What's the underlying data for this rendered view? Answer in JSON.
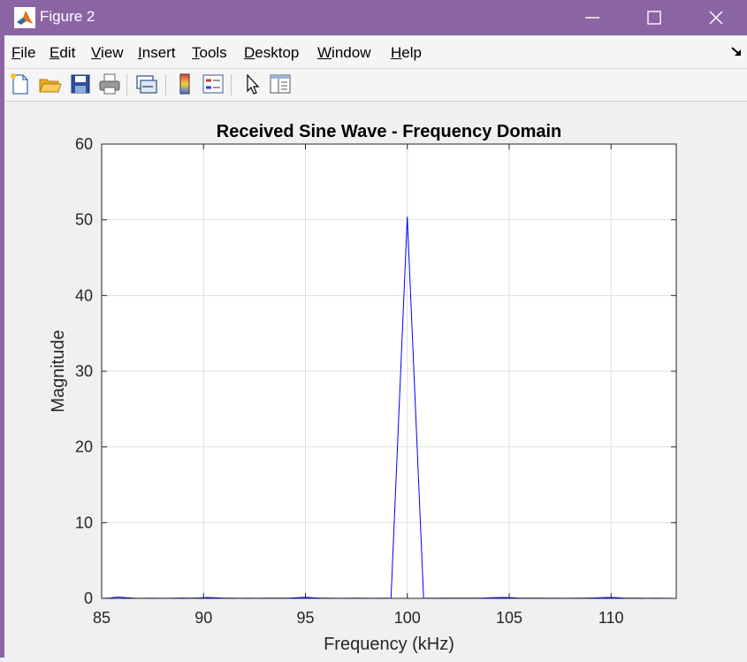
{
  "window": {
    "title": "Figure 2",
    "icons": {
      "app": "matlab-logo-icon",
      "minimize": "minimize-icon",
      "maximize": "maximize-icon",
      "close": "close-icon"
    }
  },
  "menubar": {
    "items": [
      {
        "key": "F",
        "rest": "ile"
      },
      {
        "key": "E",
        "rest": "dit"
      },
      {
        "key": "V",
        "rest": "iew"
      },
      {
        "key": "I",
        "rest": "nsert"
      },
      {
        "key": "T",
        "rest": "ools"
      },
      {
        "key": "D",
        "rest": "esktop"
      },
      {
        "key": "W",
        "rest": "indow"
      },
      {
        "key": "H",
        "rest": "elp"
      }
    ],
    "dock_icon": "dock-arrow-icon"
  },
  "toolbar": {
    "buttons": [
      "new-figure-icon",
      "open-icon",
      "save-icon",
      "print-icon",
      "link-plot-icon",
      "insert-colorbar-icon",
      "insert-legend-icon",
      "edit-plot-pointer-icon",
      "property-inspector-icon"
    ]
  },
  "chart_data": {
    "type": "line",
    "title": "Received Sine Wave - Frequency Domain",
    "xlabel": "Frequency (kHz)",
    "ylabel": "Magnitude",
    "xlim": [
      85,
      113.2
    ],
    "ylim": [
      0,
      60
    ],
    "xticks": [
      85,
      90,
      95,
      100,
      105,
      110
    ],
    "yticks": [
      0,
      10,
      20,
      30,
      40,
      50,
      60
    ],
    "grid": true,
    "series": [
      {
        "color": "#0000ff",
        "x": [
          85.0,
          85.4,
          85.8,
          86.2,
          86.6,
          87.0,
          87.4,
          87.8,
          88.2,
          88.6,
          89.0,
          89.4,
          89.8,
          90.2,
          90.6,
          91.0,
          91.4,
          91.8,
          92.2,
          92.6,
          93.0,
          93.4,
          93.8,
          94.2,
          94.6,
          95.0,
          95.4,
          95.8,
          96.2,
          96.6,
          97.0,
          97.4,
          97.8,
          98.2,
          98.6,
          99.0,
          99.2,
          100.0,
          100.8,
          101.0,
          101.4,
          101.8,
          102.2,
          102.6,
          103.0,
          103.4,
          103.8,
          104.2,
          104.6,
          105.0,
          105.4,
          105.8,
          106.2,
          106.6,
          107.0,
          107.4,
          107.8,
          108.2,
          108.6,
          109.0,
          109.4,
          109.8,
          110.2,
          110.6,
          111.0,
          111.4,
          111.8,
          112.2,
          112.6,
          113.0
        ],
        "y": [
          0.0,
          0.05,
          0.18,
          0.08,
          0.02,
          0.01,
          0.02,
          0.01,
          0.01,
          0.02,
          0.05,
          0.03,
          0.06,
          0.12,
          0.07,
          0.03,
          0.02,
          0.01,
          0.02,
          0.01,
          0.02,
          0.03,
          0.02,
          0.04,
          0.08,
          0.15,
          0.07,
          0.03,
          0.02,
          0.01,
          0.01,
          0.02,
          0.02,
          0.01,
          0.01,
          0.02,
          0.0,
          50.4,
          0.0,
          0.02,
          0.01,
          0.02,
          0.02,
          0.03,
          0.02,
          0.04,
          0.05,
          0.08,
          0.12,
          0.1,
          0.05,
          0.03,
          0.02,
          0.02,
          0.01,
          0.02,
          0.01,
          0.02,
          0.03,
          0.05,
          0.07,
          0.12,
          0.1,
          0.05,
          0.03,
          0.02,
          0.01,
          0.02,
          0.01,
          0.01
        ]
      }
    ]
  }
}
